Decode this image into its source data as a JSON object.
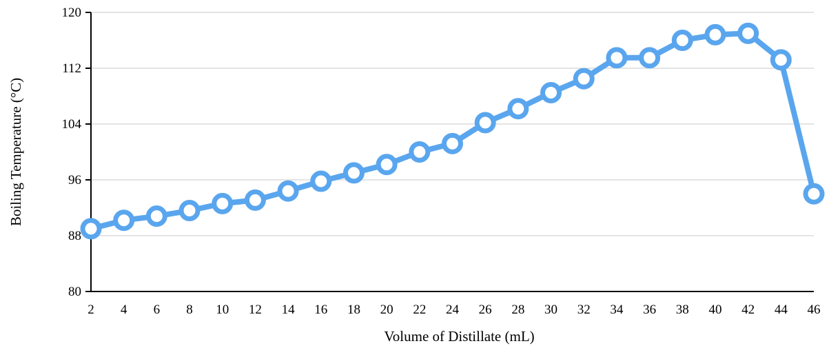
{
  "chart_data": {
    "type": "line",
    "title": "",
    "xlabel": "Volume of Distillate (mL)",
    "ylabel": "Boiling Temperature (°C)",
    "x": [
      2,
      4,
      6,
      8,
      10,
      12,
      14,
      16,
      18,
      20,
      22,
      24,
      26,
      28,
      30,
      32,
      34,
      36,
      38,
      40,
      42,
      44,
      46
    ],
    "y": [
      89,
      90.2,
      90.8,
      91.6,
      92.6,
      93.1,
      94.4,
      95.8,
      97,
      98.2,
      100,
      101.2,
      104.2,
      106.2,
      108.5,
      110.5,
      113.5,
      113.5,
      116,
      116.8,
      117,
      113.2,
      94
    ],
    "ylim": [
      80,
      120
    ],
    "yticks": [
      "80",
      "88",
      "96",
      "104",
      "112",
      "120"
    ],
    "xticks": [
      "2",
      "4",
      "6",
      "8",
      "10",
      "12",
      "14",
      "16",
      "18",
      "20",
      "22",
      "24",
      "26",
      "28",
      "30",
      "32",
      "34",
      "36",
      "38",
      "40",
      "42",
      "44",
      "46"
    ],
    "grid": true,
    "legend": "none",
    "color": "#5aa6ee",
    "marker_fill": "#ffffff"
  }
}
